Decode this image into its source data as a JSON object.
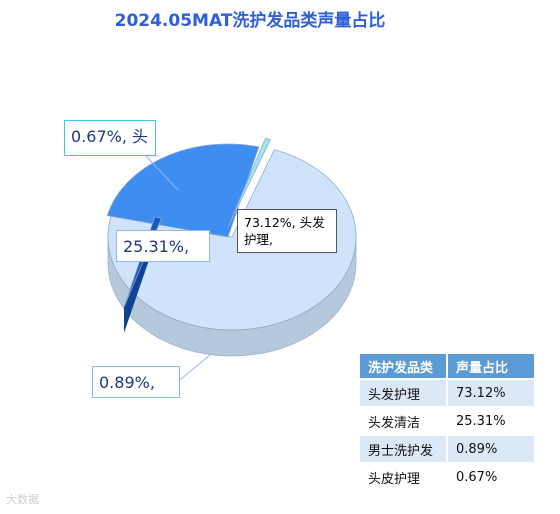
{
  "chart_data": {
    "type": "pie",
    "title": "2024.05MAT洗护发品类声量占比",
    "slices": [
      {
        "name": "头发护理",
        "value": 73.12,
        "label": "73.12%, 头发护理,",
        "color": "#cfe3fa"
      },
      {
        "name": "头发清洁",
        "value": 25.31,
        "label": "25.31%,",
        "color": "#3d8ef0"
      },
      {
        "name": "男士洗护发",
        "value": 0.89,
        "label": "0.89%,",
        "color": "#1659c4"
      },
      {
        "name": "头皮护理",
        "value": 0.67,
        "label": "0.67%, 头",
        "color": "#9ee6f5"
      }
    ]
  },
  "table": {
    "headers": [
      "洗护发品类",
      "声量占比"
    ],
    "rows": [
      [
        "头发护理",
        "73.12%"
      ],
      [
        "头发清洁",
        "25.31%"
      ],
      [
        "男士洗护发",
        "0.89%"
      ],
      [
        "头皮护理",
        "0.67%"
      ]
    ]
  },
  "watermark": "大数据"
}
